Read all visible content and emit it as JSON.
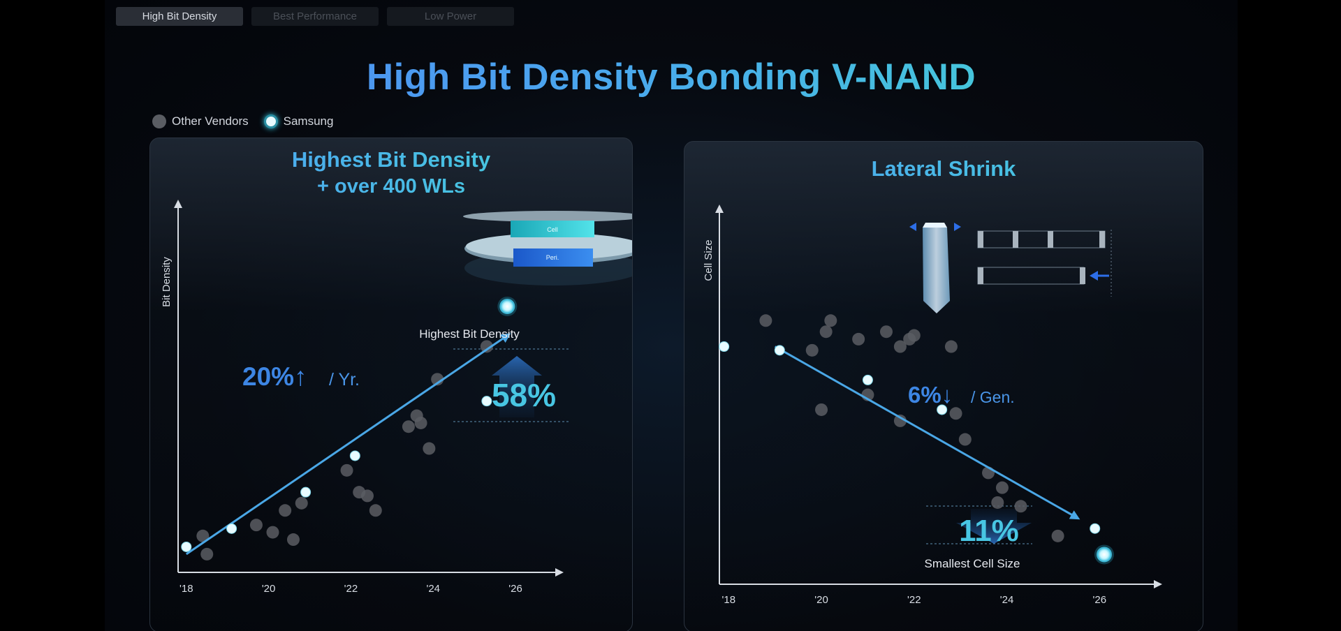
{
  "tabs": [
    {
      "label": "High Bit Density",
      "active": true
    },
    {
      "label": "Best Performance",
      "active": false
    },
    {
      "label": "Low Power",
      "active": false
    }
  ],
  "title": "High Bit Density Bonding V-NAND",
  "legend": {
    "other": "Other Vendors",
    "samsung": "Samsung"
  },
  "colors": {
    "other": "#5a5d63",
    "samsung": "#e9fbff",
    "accent_blue": "#4b8df0",
    "accent_cyan": "#43d2da"
  },
  "panels": {
    "left": {
      "title_line1": "Highest Bit Density",
      "title_line2": "+  over 400 WLs",
      "chip_top_label": "Cell",
      "chip_bottom_label": "Peri.",
      "rate_value": "20%↑",
      "rate_unit": "/ Yr.",
      "highlight_label": "Highest Bit Density",
      "highlight_value": "58%"
    },
    "right": {
      "title": "Lateral Shrink",
      "rate_value": "6%↓",
      "rate_unit": "/ Gen.",
      "highlight_label": "Smallest Cell Size",
      "highlight_value": "11%"
    }
  },
  "chart_data": [
    {
      "type": "scatter",
      "ylabel": "Bit Density",
      "xlabel": "",
      "x_ticks": [
        "'18",
        "'20",
        "'22",
        "'24",
        "'26"
      ],
      "xlim": [
        2017.8,
        2027
      ],
      "ylim": [
        0,
        100
      ],
      "series": [
        {
          "name": "Other Vendors",
          "points": [
            [
              2018.4,
              10
            ],
            [
              2018.5,
              5
            ],
            [
              2019.7,
              13
            ],
            [
              2020.1,
              11
            ],
            [
              2020.4,
              17
            ],
            [
              2020.8,
              19
            ],
            [
              2020.6,
              9
            ],
            [
              2021.9,
              28
            ],
            [
              2022.2,
              22
            ],
            [
              2022.4,
              21
            ],
            [
              2022.6,
              17
            ],
            [
              2023.4,
              40
            ],
            [
              2023.6,
              43
            ],
            [
              2023.7,
              41
            ],
            [
              2023.9,
              34
            ],
            [
              2024.1,
              53
            ],
            [
              2025.3,
              62
            ]
          ]
        },
        {
          "name": "Samsung",
          "points": [
            [
              2018.0,
              7
            ],
            [
              2019.1,
              12
            ],
            [
              2020.9,
              22
            ],
            [
              2022.1,
              32
            ],
            [
              2025.3,
              47
            ],
            [
              2025.8,
              73
            ]
          ]
        }
      ],
      "trend": [
        [
          2018.0,
          5
        ],
        [
          2025.8,
          65
        ]
      ]
    },
    {
      "type": "scatter",
      "ylabel": "Cell  Size",
      "xlabel": "",
      "x_ticks": [
        "'18",
        "'20",
        "'22",
        "'24",
        "'26"
      ],
      "xlim": [
        2017.8,
        2027.2
      ],
      "ylim": [
        0,
        100
      ],
      "series": [
        {
          "name": "Other Vendors",
          "points": [
            [
              2018.8,
              71
            ],
            [
              2019.8,
              63
            ],
            [
              2020.1,
              68
            ],
            [
              2020.2,
              71
            ],
            [
              2020.8,
              66
            ],
            [
              2021.4,
              68
            ],
            [
              2021.7,
              64
            ],
            [
              2021.9,
              66
            ],
            [
              2022.0,
              67
            ],
            [
              2022.8,
              64
            ],
            [
              2020.0,
              47
            ],
            [
              2021.0,
              51
            ],
            [
              2021.7,
              44
            ],
            [
              2022.9,
              46
            ],
            [
              2023.1,
              39
            ],
            [
              2023.6,
              30
            ],
            [
              2023.9,
              26
            ],
            [
              2023.8,
              22
            ],
            [
              2024.3,
              21
            ],
            [
              2025.1,
              13
            ]
          ]
        },
        {
          "name": "Samsung",
          "points": [
            [
              2017.9,
              64
            ],
            [
              2019.1,
              63
            ],
            [
              2021.0,
              55
            ],
            [
              2022.6,
              47
            ],
            [
              2025.9,
              15
            ],
            [
              2026.1,
              8
            ]
          ]
        }
      ],
      "trend": [
        [
          2019.0,
          64
        ],
        [
          2025.5,
          18
        ]
      ]
    }
  ]
}
